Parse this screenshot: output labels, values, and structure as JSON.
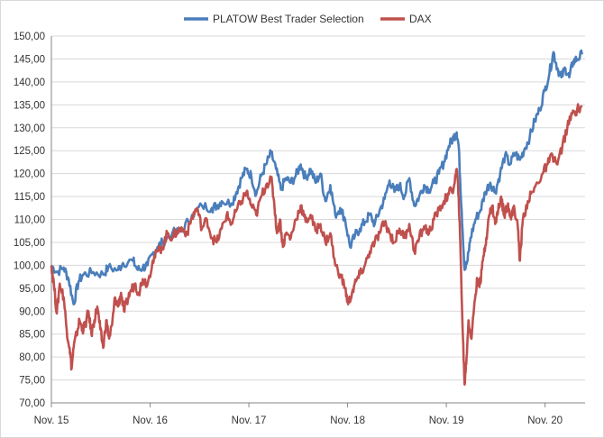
{
  "chart_data": {
    "type": "line",
    "title": "",
    "xlabel": "",
    "ylabel": "",
    "ylim": [
      70,
      150
    ],
    "y_ticks": [
      "70,00",
      "75,00",
      "80,00",
      "85,00",
      "90,00",
      "95,00",
      "100,00",
      "105,00",
      "110,00",
      "115,00",
      "120,00",
      "125,00",
      "130,00",
      "135,00",
      "140,00",
      "145,00",
      "150,00"
    ],
    "x_range": [
      2015.875,
      2021.28
    ],
    "x_ticks": [
      {
        "label": "Nov. 15",
        "x": 2015.875
      },
      {
        "label": "Nov. 16",
        "x": 2016.875
      },
      {
        "label": "Nov. 17",
        "x": 2017.875
      },
      {
        "label": "Nov. 18",
        "x": 2018.875
      },
      {
        "label": "Nov. 19",
        "x": 2019.875
      },
      {
        "label": "Nov. 20",
        "x": 2020.875
      }
    ],
    "grid": "horizontal",
    "legend_position": "top",
    "series": [
      {
        "name": "PLATOW Best Trader Selection",
        "color": "#4a7ebb",
        "points": [
          [
            2015.875,
            100
          ],
          [
            2015.93,
            98.5
          ],
          [
            2016.0,
            99.5
          ],
          [
            2016.05,
            97
          ],
          [
            2016.1,
            91.5
          ],
          [
            2016.15,
            96.5
          ],
          [
            2016.2,
            98
          ],
          [
            2016.3,
            98.5
          ],
          [
            2016.4,
            98
          ],
          [
            2016.45,
            99.5
          ],
          [
            2016.55,
            99
          ],
          [
            2016.6,
            100.5
          ],
          [
            2016.7,
            101
          ],
          [
            2016.75,
            99
          ],
          [
            2016.8,
            99.5
          ],
          [
            2016.85,
            100
          ],
          [
            2016.9,
            102.5
          ],
          [
            2016.95,
            104
          ],
          [
            2017.0,
            105
          ],
          [
            2017.1,
            107
          ],
          [
            2017.2,
            107.5
          ],
          [
            2017.3,
            111
          ],
          [
            2017.4,
            113
          ],
          [
            2017.5,
            112.5
          ],
          [
            2017.55,
            113
          ],
          [
            2017.6,
            114
          ],
          [
            2017.7,
            113.5
          ],
          [
            2017.75,
            116
          ],
          [
            2017.8,
            119
          ],
          [
            2017.85,
            121
          ],
          [
            2017.9,
            119.5
          ],
          [
            2017.95,
            115.5
          ],
          [
            2018.0,
            119.5
          ],
          [
            2018.05,
            122
          ],
          [
            2018.1,
            124.5
          ],
          [
            2018.15,
            121
          ],
          [
            2018.2,
            116.5
          ],
          [
            2018.25,
            119
          ],
          [
            2018.3,
            118
          ],
          [
            2018.35,
            119.5
          ],
          [
            2018.4,
            122
          ],
          [
            2018.45,
            119
          ],
          [
            2018.5,
            121
          ],
          [
            2018.55,
            118
          ],
          [
            2018.6,
            120
          ],
          [
            2018.65,
            114
          ],
          [
            2018.7,
            117.5
          ],
          [
            2018.75,
            111
          ],
          [
            2018.8,
            112.5
          ],
          [
            2018.85,
            110
          ],
          [
            2018.9,
            104
          ],
          [
            2018.95,
            106.5
          ],
          [
            2019.0,
            108
          ],
          [
            2019.05,
            109.5
          ],
          [
            2019.1,
            111
          ],
          [
            2019.15,
            109
          ],
          [
            2019.2,
            112
          ],
          [
            2019.25,
            114.5
          ],
          [
            2019.3,
            118.5
          ],
          [
            2019.35,
            116
          ],
          [
            2019.4,
            117.5
          ],
          [
            2019.45,
            115
          ],
          [
            2019.5,
            119
          ],
          [
            2019.55,
            113
          ],
          [
            2019.6,
            115
          ],
          [
            2019.65,
            117.5
          ],
          [
            2019.7,
            116.5
          ],
          [
            2019.75,
            118
          ],
          [
            2019.8,
            120
          ],
          [
            2019.85,
            122.5
          ],
          [
            2019.9,
            126
          ],
          [
            2019.95,
            128
          ],
          [
            2019.98,
            129
          ],
          [
            2020.0,
            126
          ],
          [
            2020.03,
            112
          ],
          [
            2020.06,
            99
          ],
          [
            2020.09,
            101
          ],
          [
            2020.12,
            106
          ],
          [
            2020.17,
            110
          ],
          [
            2020.22,
            112
          ],
          [
            2020.27,
            116
          ],
          [
            2020.32,
            118
          ],
          [
            2020.37,
            116
          ],
          [
            2020.42,
            120
          ],
          [
            2020.47,
            124
          ],
          [
            2020.52,
            122
          ],
          [
            2020.57,
            124.5
          ],
          [
            2020.62,
            123
          ],
          [
            2020.67,
            125.5
          ],
          [
            2020.72,
            128
          ],
          [
            2020.77,
            131.5
          ],
          [
            2020.82,
            134
          ],
          [
            2020.87,
            138
          ],
          [
            2020.92,
            142
          ],
          [
            2020.96,
            146.5
          ],
          [
            2021.0,
            143
          ],
          [
            2021.04,
            141
          ],
          [
            2021.08,
            143
          ],
          [
            2021.12,
            141
          ],
          [
            2021.16,
            144.5
          ],
          [
            2021.2,
            145
          ],
          [
            2021.25,
            146
          ]
        ]
      },
      {
        "name": "DAX",
        "color": "#c0504d",
        "points": [
          [
            2015.875,
            100
          ],
          [
            2015.9,
            96
          ],
          [
            2015.93,
            89.5
          ],
          [
            2015.96,
            96
          ],
          [
            2016.0,
            93
          ],
          [
            2016.03,
            86
          ],
          [
            2016.06,
            82
          ],
          [
            2016.08,
            77.5
          ],
          [
            2016.1,
            82
          ],
          [
            2016.13,
            85
          ],
          [
            2016.16,
            88
          ],
          [
            2016.19,
            86
          ],
          [
            2016.22,
            87
          ],
          [
            2016.25,
            90
          ],
          [
            2016.28,
            85
          ],
          [
            2016.31,
            88
          ],
          [
            2016.34,
            91
          ],
          [
            2016.37,
            86
          ],
          [
            2016.4,
            82
          ],
          [
            2016.43,
            88
          ],
          [
            2016.46,
            84
          ],
          [
            2016.49,
            87
          ],
          [
            2016.52,
            93
          ],
          [
            2016.55,
            91
          ],
          [
            2016.58,
            94
          ],
          [
            2016.61,
            90
          ],
          [
            2016.64,
            92
          ],
          [
            2016.67,
            94
          ],
          [
            2016.72,
            96
          ],
          [
            2016.76,
            94
          ],
          [
            2016.8,
            97
          ],
          [
            2016.85,
            96
          ],
          [
            2016.9,
            101
          ],
          [
            2016.95,
            103
          ],
          [
            2017.0,
            104
          ],
          [
            2017.05,
            107
          ],
          [
            2017.1,
            106
          ],
          [
            2017.15,
            107.5
          ],
          [
            2017.2,
            108
          ],
          [
            2017.25,
            107
          ],
          [
            2017.3,
            110.5
          ],
          [
            2017.35,
            112.5
          ],
          [
            2017.4,
            108
          ],
          [
            2017.45,
            110
          ],
          [
            2017.5,
            106
          ],
          [
            2017.55,
            105
          ],
          [
            2017.6,
            108
          ],
          [
            2017.65,
            111
          ],
          [
            2017.7,
            109
          ],
          [
            2017.75,
            112
          ],
          [
            2017.8,
            114
          ],
          [
            2017.85,
            116
          ],
          [
            2017.9,
            113
          ],
          [
            2017.95,
            111
          ],
          [
            2018.0,
            115
          ],
          [
            2018.05,
            117.5
          ],
          [
            2018.1,
            119
          ],
          [
            2018.13,
            114
          ],
          [
            2018.16,
            107
          ],
          [
            2018.19,
            110
          ],
          [
            2018.22,
            104
          ],
          [
            2018.25,
            107
          ],
          [
            2018.3,
            106
          ],
          [
            2018.35,
            110
          ],
          [
            2018.4,
            113
          ],
          [
            2018.45,
            109.5
          ],
          [
            2018.5,
            111
          ],
          [
            2018.55,
            107.5
          ],
          [
            2018.6,
            109
          ],
          [
            2018.65,
            105
          ],
          [
            2018.7,
            107
          ],
          [
            2018.75,
            100
          ],
          [
            2018.8,
            98
          ],
          [
            2018.85,
            95
          ],
          [
            2018.88,
            91.5
          ],
          [
            2018.92,
            94
          ],
          [
            2018.96,
            96.5
          ],
          [
            2019.0,
            98
          ],
          [
            2019.05,
            100
          ],
          [
            2019.1,
            103
          ],
          [
            2019.15,
            105
          ],
          [
            2019.2,
            107
          ],
          [
            2019.25,
            109.5
          ],
          [
            2019.3,
            107
          ],
          [
            2019.35,
            105
          ],
          [
            2019.4,
            108
          ],
          [
            2019.45,
            106
          ],
          [
            2019.5,
            109
          ],
          [
            2019.55,
            103
          ],
          [
            2019.6,
            106
          ],
          [
            2019.65,
            108.5
          ],
          [
            2019.7,
            107
          ],
          [
            2019.75,
            110
          ],
          [
            2019.8,
            112
          ],
          [
            2019.85,
            114
          ],
          [
            2019.9,
            115.5
          ],
          [
            2019.95,
            117
          ],
          [
            2019.98,
            121
          ],
          [
            2020.0,
            115
          ],
          [
            2020.02,
            102
          ],
          [
            2020.04,
            86
          ],
          [
            2020.06,
            74
          ],
          [
            2020.08,
            80
          ],
          [
            2020.1,
            88
          ],
          [
            2020.13,
            84
          ],
          [
            2020.16,
            92
          ],
          [
            2020.19,
            97
          ],
          [
            2020.22,
            96
          ],
          [
            2020.25,
            102
          ],
          [
            2020.28,
            106
          ],
          [
            2020.31,
            111
          ],
          [
            2020.34,
            113
          ],
          [
            2020.37,
            109
          ],
          [
            2020.4,
            112
          ],
          [
            2020.43,
            115
          ],
          [
            2020.46,
            111
          ],
          [
            2020.5,
            113.5
          ],
          [
            2020.53,
            110
          ],
          [
            2020.56,
            113
          ],
          [
            2020.6,
            108
          ],
          [
            2020.62,
            101
          ],
          [
            2020.65,
            110
          ],
          [
            2020.7,
            114
          ],
          [
            2020.75,
            116
          ],
          [
            2020.8,
            118
          ],
          [
            2020.85,
            120
          ],
          [
            2020.9,
            122
          ],
          [
            2020.95,
            124
          ],
          [
            2021.0,
            122
          ],
          [
            2021.05,
            126
          ],
          [
            2021.1,
            130
          ],
          [
            2021.15,
            133
          ],
          [
            2021.2,
            134
          ],
          [
            2021.25,
            134.5
          ]
        ]
      }
    ]
  }
}
